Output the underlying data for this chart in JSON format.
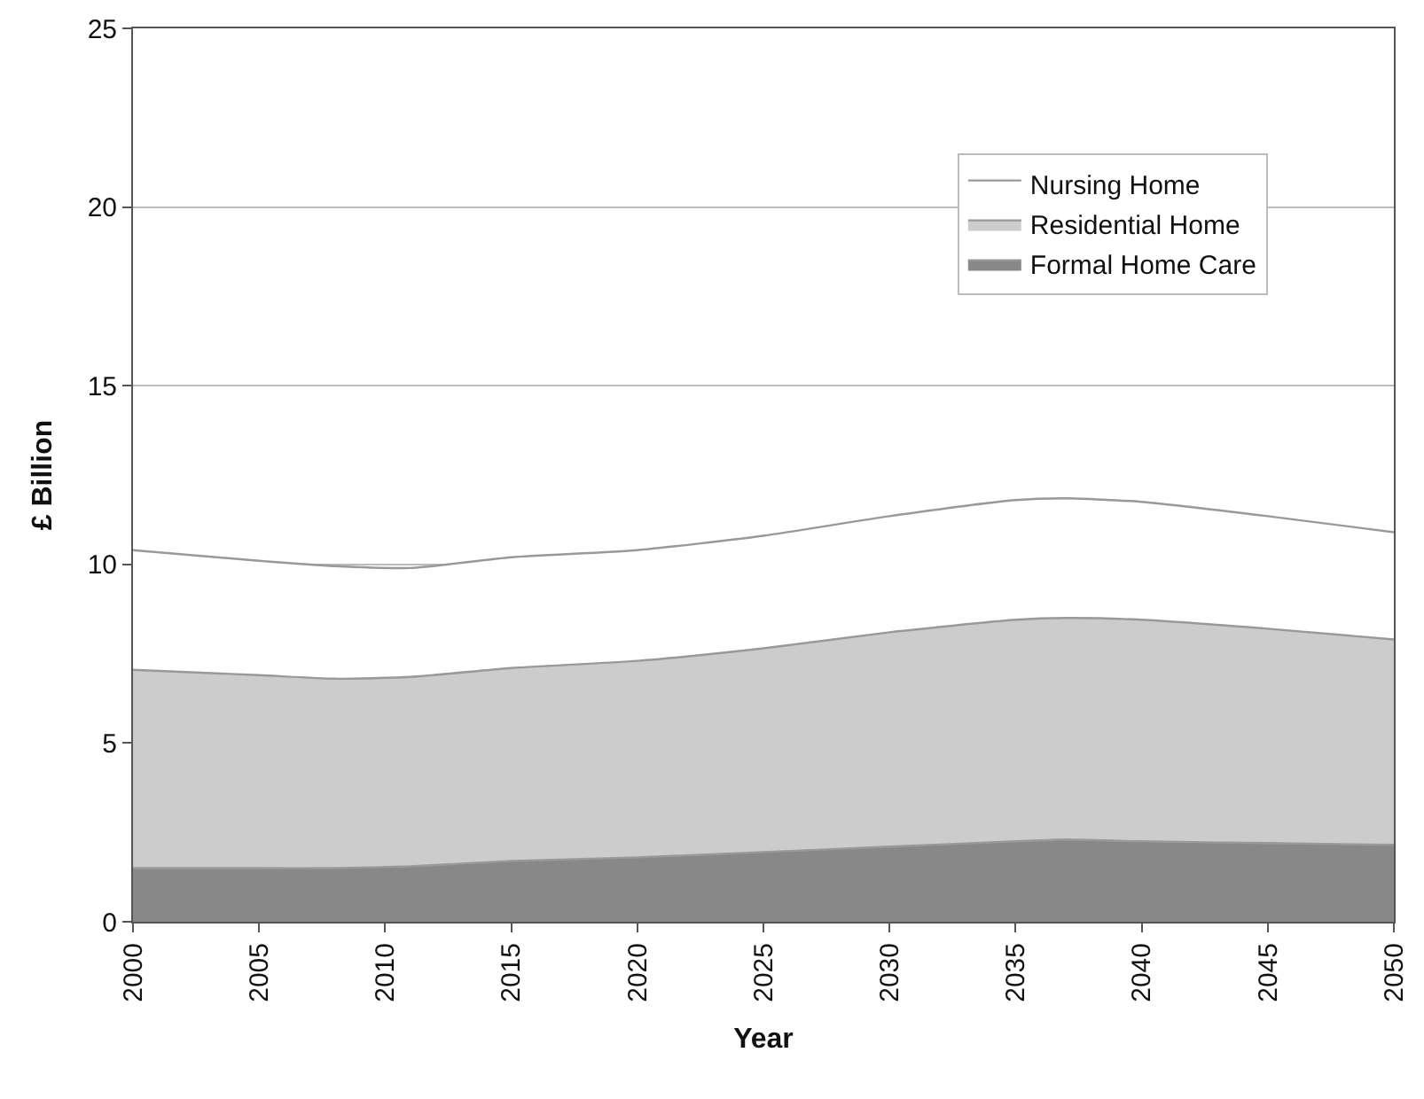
{
  "chart_data": {
    "type": "area",
    "stacked": true,
    "xlabel": "Year",
    "ylabel": "£ Billion",
    "x": [
      2000,
      2005,
      2008,
      2011,
      2015,
      2020,
      2025,
      2030,
      2035,
      2037,
      2040,
      2045,
      2050
    ],
    "series": [
      {
        "name": "Formal Home Care",
        "color": "#888888",
        "values": [
          1.5,
          1.5,
          1.5,
          1.55,
          1.7,
          1.8,
          1.95,
          2.1,
          2.25,
          2.3,
          2.25,
          2.2,
          2.15
        ]
      },
      {
        "name": "Residential Home",
        "color": "#cccccc",
        "values": [
          5.55,
          5.4,
          5.3,
          5.3,
          5.4,
          5.5,
          5.7,
          6.0,
          6.2,
          6.2,
          6.2,
          6.0,
          5.75
        ]
      },
      {
        "name": "Nursing Home",
        "color": "#ffffff",
        "values": [
          3.35,
          3.2,
          3.15,
          3.05,
          3.1,
          3.1,
          3.15,
          3.25,
          3.35,
          3.35,
          3.3,
          3.15,
          3.0
        ]
      }
    ],
    "xlim": [
      2000,
      2050
    ],
    "xticks": [
      2000,
      2005,
      2010,
      2015,
      2020,
      2025,
      2030,
      2035,
      2040,
      2045,
      2050
    ],
    "ylim": [
      0,
      25
    ],
    "yticks": [
      0,
      5,
      10,
      15,
      20,
      25
    ],
    "grid": "y",
    "legend": "top right"
  }
}
